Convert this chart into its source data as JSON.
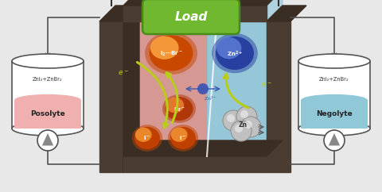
{
  "bg_color": "#e8e8e8",
  "load_label": "Load",
  "load_color": "#70b830",
  "load_edge_color": "#4a8a18",
  "posolyte_label": "Posolyte",
  "negolyte_label": "Negolyte",
  "tank_label": "ZnI₂+ZnBr₂",
  "left_bg": "#d4908a",
  "right_bg": "#8cc4d8",
  "electrode_color": "#4a3c30",
  "electrode_side": "#3a2e24",
  "i2br_color_center": "#f09030",
  "i2br_color_edge": "#c85000",
  "zn2plus_color": "#3858a8",
  "br_color": "#c84810",
  "i_color_center": "#f08020",
  "i_color_edge": "#b03000",
  "arrow_color": "#b8cc18",
  "zn_color": "#c0c0c0",
  "zn_edge_color": "#909090",
  "zn2_ion_color": "#4858b0",
  "wire_color": "#303030",
  "pipe_color": "#505050",
  "tank_edge_color": "#555555",
  "tank_bg": "#ffffff",
  "left_tank_fill": "#f0b0b0",
  "right_tank_fill": "#90c8d8"
}
